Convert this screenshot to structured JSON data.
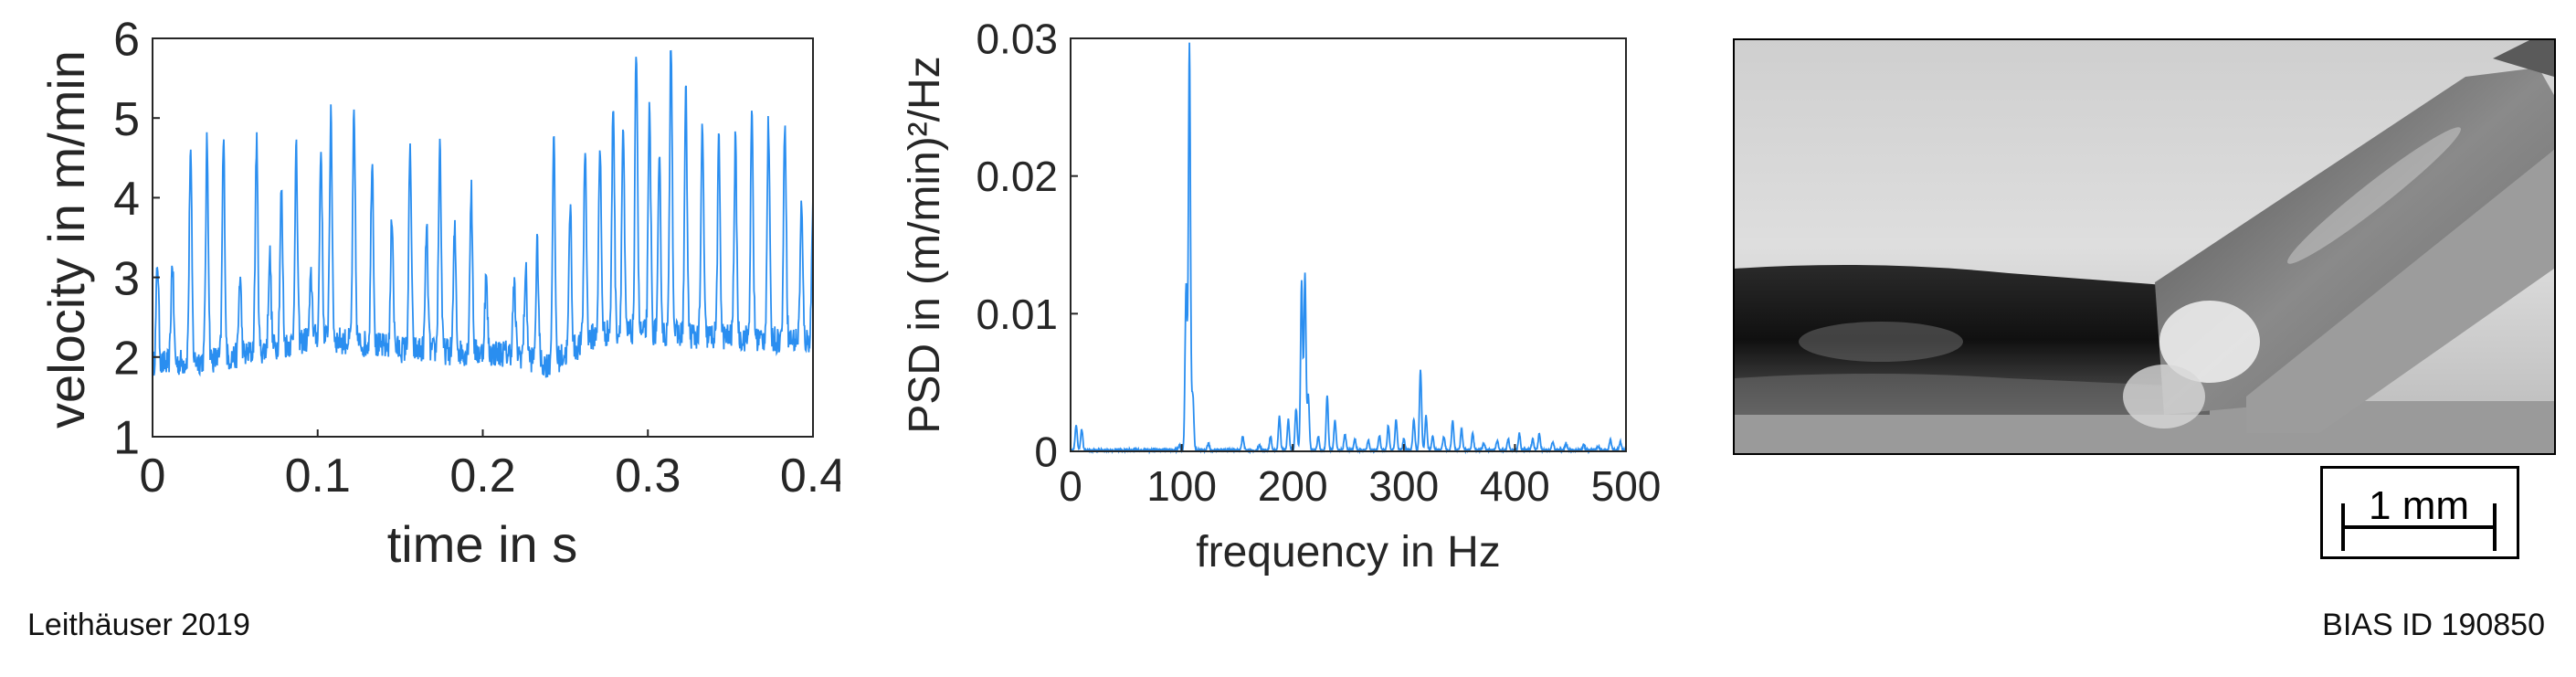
{
  "colors": {
    "series": "#2a8ef0",
    "axis": "#262626"
  },
  "chart_data": [
    {
      "type": "line",
      "title": "",
      "xlabel": "time in s",
      "ylabel": "velocity in m/min",
      "xlim": [
        0,
        0.4
      ],
      "ylim": [
        1,
        6
      ],
      "xticks": [
        0,
        0.1,
        0.2,
        0.3,
        0.4
      ],
      "xticklabels": [
        "0",
        "0.1",
        "0.2",
        "0.3",
        "0.4"
      ],
      "yticks": [
        1,
        2,
        3,
        4,
        5,
        6
      ],
      "yticklabels": [
        "1",
        "2",
        "3",
        "4",
        "5",
        "6"
      ],
      "grid": false,
      "baseline": [
        [
          0,
          1.9
        ],
        [
          0.05,
          2.0
        ],
        [
          0.1,
          2.25
        ],
        [
          0.15,
          2.1
        ],
        [
          0.2,
          2.05
        ],
        [
          0.22,
          2.05
        ],
        [
          0.24,
          1.9
        ],
        [
          0.27,
          2.3
        ],
        [
          0.3,
          2.3
        ],
        [
          0.35,
          2.25
        ],
        [
          0.4,
          2.2
        ]
      ],
      "spikes": [
        [
          0.003,
          3.2
        ],
        [
          0.012,
          3.2
        ],
        [
          0.023,
          4.6
        ],
        [
          0.033,
          4.7
        ],
        [
          0.043,
          4.7
        ],
        [
          0.053,
          3.0
        ],
        [
          0.063,
          4.7
        ],
        [
          0.071,
          3.3
        ],
        [
          0.078,
          4.1
        ],
        [
          0.087,
          4.6
        ],
        [
          0.096,
          3.0
        ],
        [
          0.102,
          4.6
        ],
        [
          0.108,
          5.0
        ],
        [
          0.122,
          5.0
        ],
        [
          0.133,
          4.5
        ],
        [
          0.145,
          3.8
        ],
        [
          0.156,
          4.6
        ],
        [
          0.166,
          3.6
        ],
        [
          0.174,
          4.7
        ],
        [
          0.183,
          3.6
        ],
        [
          0.193,
          4.1
        ],
        [
          0.202,
          3.0
        ],
        [
          0.219,
          2.9
        ],
        [
          0.226,
          3.1
        ],
        [
          0.233,
          3.4
        ],
        [
          0.243,
          4.7
        ],
        [
          0.253,
          3.9
        ],
        [
          0.262,
          4.6
        ],
        [
          0.271,
          4.6
        ],
        [
          0.279,
          5.2
        ],
        [
          0.285,
          4.9
        ],
        [
          0.293,
          5.9
        ],
        [
          0.301,
          5.1
        ],
        [
          0.307,
          4.4
        ],
        [
          0.314,
          6.0
        ],
        [
          0.323,
          5.3
        ],
        [
          0.333,
          4.9
        ],
        [
          0.343,
          4.7
        ],
        [
          0.353,
          4.7
        ],
        [
          0.363,
          5.0
        ],
        [
          0.373,
          4.9
        ],
        [
          0.383,
          5.0
        ],
        [
          0.393,
          3.9
        ],
        [
          0.4,
          3.9
        ]
      ]
    },
    {
      "type": "line",
      "title": "",
      "xlabel": "frequency in Hz",
      "ylabel": "PSD in (m/min)²/Hz",
      "xlim": [
        0,
        500
      ],
      "ylim": [
        0,
        0.03
      ],
      "xticks": [
        0,
        100,
        200,
        300,
        400,
        500
      ],
      "xticklabels": [
        "0",
        "100",
        "200",
        "300",
        "400",
        "500"
      ],
      "yticks": [
        0,
        0.01,
        0.02,
        0.03
      ],
      "yticklabels": [
        "0",
        "0.01",
        "0.02",
        "0.03"
      ],
      "grid": false,
      "peaks": [
        [
          5,
          0.0018
        ],
        [
          10,
          0.0015
        ],
        [
          98,
          0.0003
        ],
        [
          104,
          0.012
        ],
        [
          107,
          0.0295
        ],
        [
          110,
          0.004
        ],
        [
          124,
          0.0005
        ],
        [
          155,
          0.001
        ],
        [
          170,
          0.0004
        ],
        [
          180,
          0.001
        ],
        [
          188,
          0.0025
        ],
        [
          196,
          0.0022
        ],
        [
          203,
          0.003
        ],
        [
          208,
          0.0122
        ],
        [
          211,
          0.0128
        ],
        [
          214,
          0.004
        ],
        [
          223,
          0.001
        ],
        [
          231,
          0.004
        ],
        [
          238,
          0.0022
        ],
        [
          247,
          0.0012
        ],
        [
          256,
          0.0008
        ],
        [
          268,
          0.0007
        ],
        [
          278,
          0.001
        ],
        [
          286,
          0.0018
        ],
        [
          293,
          0.0023
        ],
        [
          300,
          0.0008
        ],
        [
          309,
          0.0022
        ],
        [
          315,
          0.0058
        ],
        [
          320,
          0.0025
        ],
        [
          326,
          0.001
        ],
        [
          336,
          0.001
        ],
        [
          344,
          0.0022
        ],
        [
          352,
          0.0015
        ],
        [
          362,
          0.0012
        ],
        [
          372,
          0.0005
        ],
        [
          384,
          0.0007
        ],
        [
          394,
          0.0008
        ],
        [
          404,
          0.0012
        ],
        [
          416,
          0.0008
        ],
        [
          422,
          0.0012
        ],
        [
          434,
          0.0006
        ],
        [
          446,
          0.0005
        ],
        [
          462,
          0.0004
        ],
        [
          475,
          0.0003
        ],
        [
          486,
          0.0008
        ],
        [
          495,
          0.0006
        ]
      ]
    }
  ],
  "image": {
    "scalebar_label": "1 mm"
  },
  "footer": {
    "left": "Leithäuser 2019",
    "right": "BIAS ID 190850"
  }
}
